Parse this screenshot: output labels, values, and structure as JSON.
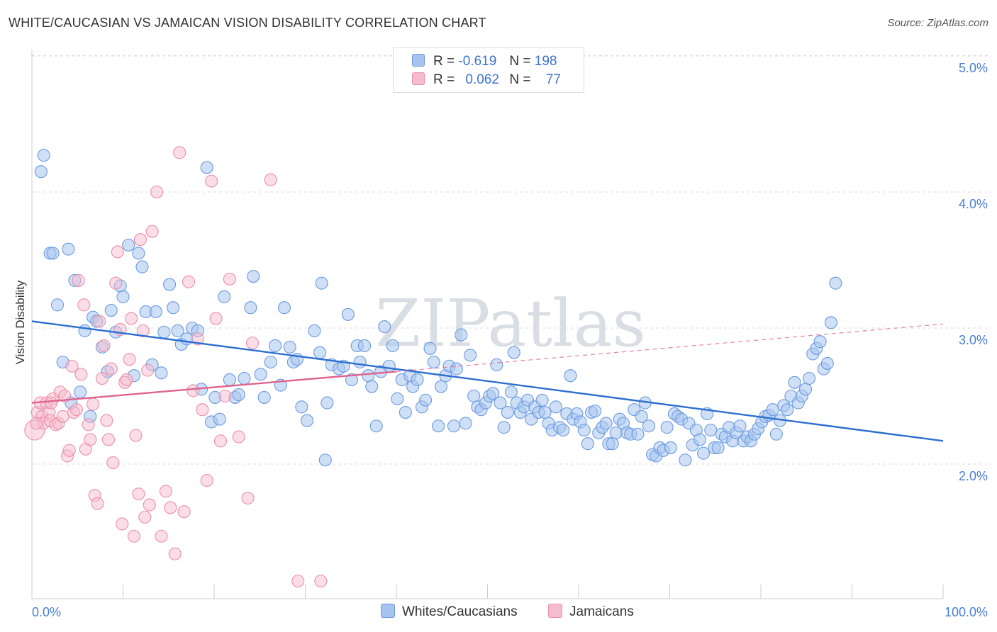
{
  "title": "WHITE/CAUCASIAN VS JAMAICAN VISION DISABILITY CORRELATION CHART",
  "source": "Source: ZipAtlas.com",
  "watermark": "ZIPatlas",
  "legend": {
    "rows": [
      {
        "r_label": "R =",
        "r_value": "-0.619",
        "n_label": "N =",
        "n_value": "198"
      },
      {
        "r_label": "R =",
        "r_value": "0.062",
        "n_label": "N =",
        "n_value": "77"
      }
    ]
  },
  "bottom_legend": {
    "white": "Whites/Caucasians",
    "jamaican": "Jamaicans"
  },
  "colors": {
    "white_fill": "#a8c4ee",
    "white_stroke": "#6b9be0",
    "white_line": "#2c6fd1",
    "jamaican_fill": "#f5bccd",
    "jamaican_stroke": "#ec8fab",
    "jamaican_line": "#e0638d",
    "tick_text": "#4a7fd4"
  },
  "chart_data": {
    "type": "scatter",
    "title": "WHITE/CAUCASIAN VS JAMAICAN VISION DISABILITY CORRELATION CHART",
    "xlabel": "",
    "ylabel": "Vision Disability",
    "xlim": [
      0,
      100
    ],
    "ylim": [
      1.0,
      5.2
    ],
    "y_ticks": [
      "2.0%",
      "3.0%",
      "4.0%",
      "5.0%"
    ],
    "y_tick_values": [
      2.0,
      3.0,
      4.0,
      5.0
    ],
    "x_ticks": [
      "0.0%",
      "100.0%"
    ],
    "x_tick_values": [
      0,
      100
    ],
    "grid": "horizontal dashed",
    "legend_position": "top-center",
    "series": [
      {
        "name": "Whites/Caucasians",
        "r": -0.619,
        "n": 198,
        "trend": {
          "x": [
            0,
            100
          ],
          "y": [
            3.05,
            2.17
          ]
        },
        "points": [
          [
            1.0,
            4.15
          ],
          [
            1.3,
            4.27
          ],
          [
            2.0,
            3.55
          ],
          [
            2.3,
            3.55
          ],
          [
            2.8,
            3.17
          ],
          [
            3.4,
            2.75
          ],
          [
            4.0,
            3.58
          ],
          [
            4.3,
            2.45
          ],
          [
            4.7,
            3.35
          ],
          [
            5.3,
            2.53
          ],
          [
            5.8,
            2.98
          ],
          [
            6.4,
            2.35
          ],
          [
            6.7,
            3.08
          ],
          [
            7.1,
            3.05
          ],
          [
            7.7,
            2.86
          ],
          [
            8.3,
            2.68
          ],
          [
            8.7,
            3.13
          ],
          [
            9.2,
            2.97
          ],
          [
            9.7,
            3.31
          ],
          [
            10.0,
            3.23
          ],
          [
            10.6,
            3.61
          ],
          [
            11.2,
            2.65
          ],
          [
            11.7,
            3.55
          ],
          [
            12.1,
            3.45
          ],
          [
            12.5,
            3.12
          ],
          [
            13.2,
            2.73
          ],
          [
            13.6,
            3.12
          ],
          [
            14.2,
            2.67
          ],
          [
            14.5,
            2.97
          ],
          [
            15.1,
            3.32
          ],
          [
            15.5,
            3.15
          ],
          [
            16.0,
            2.98
          ],
          [
            16.4,
            2.88
          ],
          [
            17.0,
            2.92
          ],
          [
            17.6,
            3.0
          ],
          [
            18.2,
            2.98
          ],
          [
            18.6,
            2.55
          ],
          [
            19.2,
            4.18
          ],
          [
            19.7,
            2.31
          ],
          [
            20.1,
            2.49
          ],
          [
            20.6,
            2.33
          ],
          [
            21.1,
            3.23
          ],
          [
            21.7,
            2.62
          ],
          [
            22.3,
            2.49
          ],
          [
            22.7,
            2.51
          ],
          [
            23.3,
            2.63
          ],
          [
            24.0,
            3.15
          ],
          [
            24.3,
            3.38
          ],
          [
            25.1,
            2.66
          ],
          [
            25.5,
            2.49
          ],
          [
            26.2,
            2.75
          ],
          [
            26.7,
            2.87
          ],
          [
            27.3,
            2.58
          ],
          [
            27.7,
            3.15
          ],
          [
            28.3,
            2.86
          ],
          [
            28.7,
            2.75
          ],
          [
            29.1,
            2.77
          ],
          [
            29.6,
            2.42
          ],
          [
            30.2,
            2.32
          ],
          [
            31.0,
            2.98
          ],
          [
            31.6,
            2.82
          ],
          [
            31.8,
            3.33
          ],
          [
            32.2,
            2.03
          ],
          [
            32.4,
            2.45
          ],
          [
            32.9,
            2.73
          ],
          [
            33.7,
            2.7
          ],
          [
            34.2,
            2.72
          ],
          [
            34.7,
            3.1
          ],
          [
            35.1,
            2.62
          ],
          [
            35.7,
            2.87
          ],
          [
            36.0,
            2.75
          ],
          [
            36.5,
            2.87
          ],
          [
            36.9,
            2.65
          ],
          [
            37.3,
            2.57
          ],
          [
            37.8,
            2.28
          ],
          [
            38.3,
            2.68
          ],
          [
            38.7,
            3.01
          ],
          [
            39.2,
            2.72
          ],
          [
            39.6,
            2.87
          ],
          [
            40.1,
            2.48
          ],
          [
            40.6,
            2.62
          ],
          [
            41.0,
            2.38
          ],
          [
            41.5,
            2.65
          ],
          [
            41.8,
            2.57
          ],
          [
            42.3,
            2.62
          ],
          [
            42.8,
            2.42
          ],
          [
            43.2,
            2.47
          ],
          [
            43.7,
            2.85
          ],
          [
            44.1,
            2.75
          ],
          [
            44.6,
            2.28
          ],
          [
            44.9,
            2.57
          ],
          [
            45.4,
            2.65
          ],
          [
            45.8,
            2.72
          ],
          [
            46.3,
            2.28
          ],
          [
            46.6,
            2.7
          ],
          [
            47.1,
            2.95
          ],
          [
            47.6,
            2.3
          ],
          [
            48.1,
            2.8
          ],
          [
            48.5,
            2.5
          ],
          [
            48.9,
            2.42
          ],
          [
            49.3,
            2.4
          ],
          [
            49.8,
            2.45
          ],
          [
            50.2,
            2.5
          ],
          [
            50.6,
            2.52
          ],
          [
            51.0,
            2.73
          ],
          [
            51.4,
            2.45
          ],
          [
            51.8,
            2.27
          ],
          [
            52.2,
            2.38
          ],
          [
            52.6,
            2.53
          ],
          [
            52.9,
            2.82
          ],
          [
            53.2,
            2.45
          ],
          [
            53.6,
            2.38
          ],
          [
            54.0,
            2.42
          ],
          [
            54.4,
            2.47
          ],
          [
            54.8,
            2.33
          ],
          [
            55.2,
            2.42
          ],
          [
            55.6,
            2.38
          ],
          [
            56.0,
            2.47
          ],
          [
            56.3,
            2.38
          ],
          [
            56.7,
            2.3
          ],
          [
            57.1,
            2.25
          ],
          [
            57.5,
            2.42
          ],
          [
            57.9,
            2.27
          ],
          [
            58.3,
            2.25
          ],
          [
            58.7,
            2.37
          ],
          [
            59.1,
            2.65
          ],
          [
            59.4,
            2.33
          ],
          [
            59.8,
            2.37
          ],
          [
            60.2,
            2.31
          ],
          [
            60.6,
            2.25
          ],
          [
            61.0,
            2.15
          ],
          [
            61.4,
            2.38
          ],
          [
            61.8,
            2.39
          ],
          [
            62.2,
            2.23
          ],
          [
            62.6,
            2.27
          ],
          [
            63.0,
            2.3
          ],
          [
            63.3,
            2.15
          ],
          [
            63.7,
            2.15
          ],
          [
            64.1,
            2.23
          ],
          [
            64.5,
            2.33
          ],
          [
            64.9,
            2.3
          ],
          [
            65.3,
            2.23
          ],
          [
            65.7,
            2.22
          ],
          [
            66.1,
            2.4
          ],
          [
            66.5,
            2.22
          ],
          [
            66.9,
            2.35
          ],
          [
            67.3,
            2.45
          ],
          [
            67.7,
            2.28
          ],
          [
            68.1,
            2.07
          ],
          [
            68.5,
            2.06
          ],
          [
            68.9,
            2.12
          ],
          [
            69.3,
            2.1
          ],
          [
            69.7,
            2.27
          ],
          [
            70.1,
            2.12
          ],
          [
            70.5,
            2.37
          ],
          [
            70.9,
            2.35
          ],
          [
            71.3,
            2.33
          ],
          [
            71.7,
            2.03
          ],
          [
            72.1,
            2.3
          ],
          [
            72.5,
            2.14
          ],
          [
            72.9,
            2.25
          ],
          [
            73.3,
            2.18
          ],
          [
            73.7,
            2.08
          ],
          [
            74.1,
            2.37
          ],
          [
            74.5,
            2.25
          ],
          [
            74.9,
            2.12
          ],
          [
            75.3,
            2.12
          ],
          [
            75.7,
            2.22
          ],
          [
            76.1,
            2.2
          ],
          [
            76.5,
            2.27
          ],
          [
            76.9,
            2.17
          ],
          [
            77.3,
            2.23
          ],
          [
            77.7,
            2.28
          ],
          [
            78.1,
            2.17
          ],
          [
            78.5,
            2.2
          ],
          [
            78.9,
            2.17
          ],
          [
            79.3,
            2.22
          ],
          [
            79.7,
            2.26
          ],
          [
            80.1,
            2.31
          ],
          [
            80.5,
            2.35
          ],
          [
            80.9,
            2.36
          ],
          [
            81.3,
            2.4
          ],
          [
            81.7,
            2.22
          ],
          [
            82.1,
            2.32
          ],
          [
            82.5,
            2.43
          ],
          [
            82.9,
            2.4
          ],
          [
            83.3,
            2.5
          ],
          [
            83.7,
            2.6
          ],
          [
            84.1,
            2.45
          ],
          [
            84.5,
            2.5
          ],
          [
            84.9,
            2.55
          ],
          [
            85.3,
            2.63
          ],
          [
            85.7,
            2.81
          ],
          [
            86.1,
            2.85
          ],
          [
            86.5,
            2.9
          ],
          [
            86.9,
            2.7
          ],
          [
            87.3,
            2.74
          ],
          [
            87.7,
            3.04
          ],
          [
            88.2,
            3.33
          ]
        ]
      },
      {
        "name": "Jamaicans",
        "r": 0.062,
        "n": 77,
        "trend": {
          "x": [
            0,
            40
          ],
          "y": [
            2.45,
            2.68
          ]
        },
        "trend_dashed": {
          "x": [
            40,
            100
          ],
          "y": [
            2.68,
            3.03
          ]
        },
        "points": [
          [
            0.3,
            2.25
          ],
          [
            0.6,
            2.38
          ],
          [
            0.9,
            2.45
          ],
          [
            1.1,
            2.35
          ],
          [
            1.3,
            2.3
          ],
          [
            1.6,
            2.45
          ],
          [
            1.9,
            2.38
          ],
          [
            2.0,
            2.32
          ],
          [
            2.3,
            2.48
          ],
          [
            2.6,
            2.29
          ],
          [
            2.9,
            2.3
          ],
          [
            3.1,
            2.53
          ],
          [
            3.4,
            2.35
          ],
          [
            3.6,
            2.5
          ],
          [
            3.9,
            2.06
          ],
          [
            4.1,
            2.1
          ],
          [
            4.4,
            2.72
          ],
          [
            4.6,
            2.38
          ],
          [
            4.9,
            2.4
          ],
          [
            5.1,
            3.35
          ],
          [
            5.4,
            2.66
          ],
          [
            5.7,
            3.17
          ],
          [
            5.9,
            2.11
          ],
          [
            6.2,
            2.29
          ],
          [
            6.4,
            2.18
          ],
          [
            6.7,
            2.44
          ],
          [
            6.9,
            1.77
          ],
          [
            7.2,
            1.71
          ],
          [
            7.4,
            3.05
          ],
          [
            7.7,
            2.63
          ],
          [
            7.9,
            2.87
          ],
          [
            8.2,
            2.32
          ],
          [
            8.4,
            2.18
          ],
          [
            8.7,
            2.7
          ],
          [
            8.9,
            2.01
          ],
          [
            9.2,
            3.33
          ],
          [
            9.4,
            3.56
          ],
          [
            9.7,
            2.99
          ],
          [
            9.9,
            1.56
          ],
          [
            10.2,
            2.6
          ],
          [
            10.4,
            2.62
          ],
          [
            10.7,
            2.77
          ],
          [
            10.9,
            3.07
          ],
          [
            11.2,
            1.47
          ],
          [
            11.4,
            2.21
          ],
          [
            11.7,
            1.78
          ],
          [
            11.9,
            3.65
          ],
          [
            12.2,
            2.98
          ],
          [
            12.4,
            1.61
          ],
          [
            12.7,
            2.69
          ],
          [
            12.9,
            1.7
          ],
          [
            13.2,
            3.71
          ],
          [
            13.7,
            4.0
          ],
          [
            14.2,
            1.47
          ],
          [
            14.7,
            1.8
          ],
          [
            15.2,
            1.68
          ],
          [
            15.7,
            1.34
          ],
          [
            16.2,
            4.29
          ],
          [
            16.7,
            1.65
          ],
          [
            17.2,
            3.34
          ],
          [
            17.7,
            2.54
          ],
          [
            18.2,
            2.92
          ],
          [
            18.7,
            2.4
          ],
          [
            19.2,
            1.88
          ],
          [
            19.7,
            4.08
          ],
          [
            20.2,
            3.07
          ],
          [
            20.7,
            2.17
          ],
          [
            21.2,
            2.5
          ],
          [
            21.7,
            3.36
          ],
          [
            22.7,
            2.2
          ],
          [
            23.7,
            1.75
          ],
          [
            24.2,
            2.89
          ],
          [
            26.2,
            4.09
          ],
          [
            29.2,
            1.14
          ],
          [
            31.7,
            1.14
          ],
          [
            2.1,
            2.45
          ],
          [
            0.5,
            2.3
          ]
        ]
      }
    ]
  }
}
